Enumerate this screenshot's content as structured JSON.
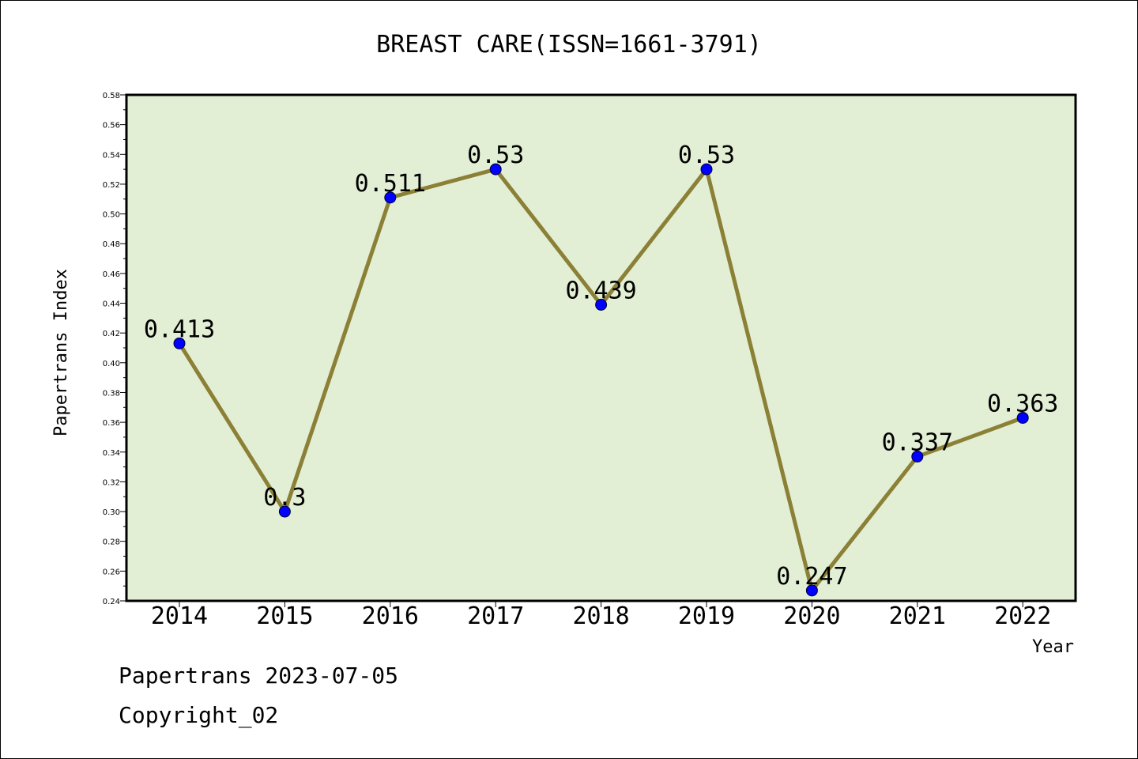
{
  "chart_data": {
    "type": "line",
    "title": "BREAST CARE(ISSN=1661-3791)",
    "xlabel": "Year",
    "ylabel": "Papertrans Index",
    "categories": [
      "2014",
      "2015",
      "2016",
      "2017",
      "2018",
      "2019",
      "2020",
      "2021",
      "2022"
    ],
    "values": [
      0.413,
      0.3,
      0.511,
      0.53,
      0.439,
      0.53,
      0.247,
      0.337,
      0.363
    ],
    "data_labels": [
      "0.413",
      "0.3",
      "0.511",
      "0.53",
      "0.439",
      "0.53",
      "0.247",
      "0.337",
      "0.363"
    ],
    "ylim": [
      0.24,
      0.58
    ],
    "yticks": [
      "0.24",
      "0.26",
      "0.28",
      "0.30",
      "0.32",
      "0.34",
      "0.36",
      "0.38",
      "0.40",
      "0.42",
      "0.44",
      "0.46",
      "0.48",
      "0.50",
      "0.52",
      "0.54",
      "0.56",
      "0.58"
    ],
    "grid": false,
    "colors": {
      "plot_background": "#e2efd5",
      "line": "#8b8036",
      "marker": "#0000ff"
    }
  },
  "footer": {
    "line1": "Papertrans 2023-07-05",
    "line2": "Copyright_02"
  }
}
